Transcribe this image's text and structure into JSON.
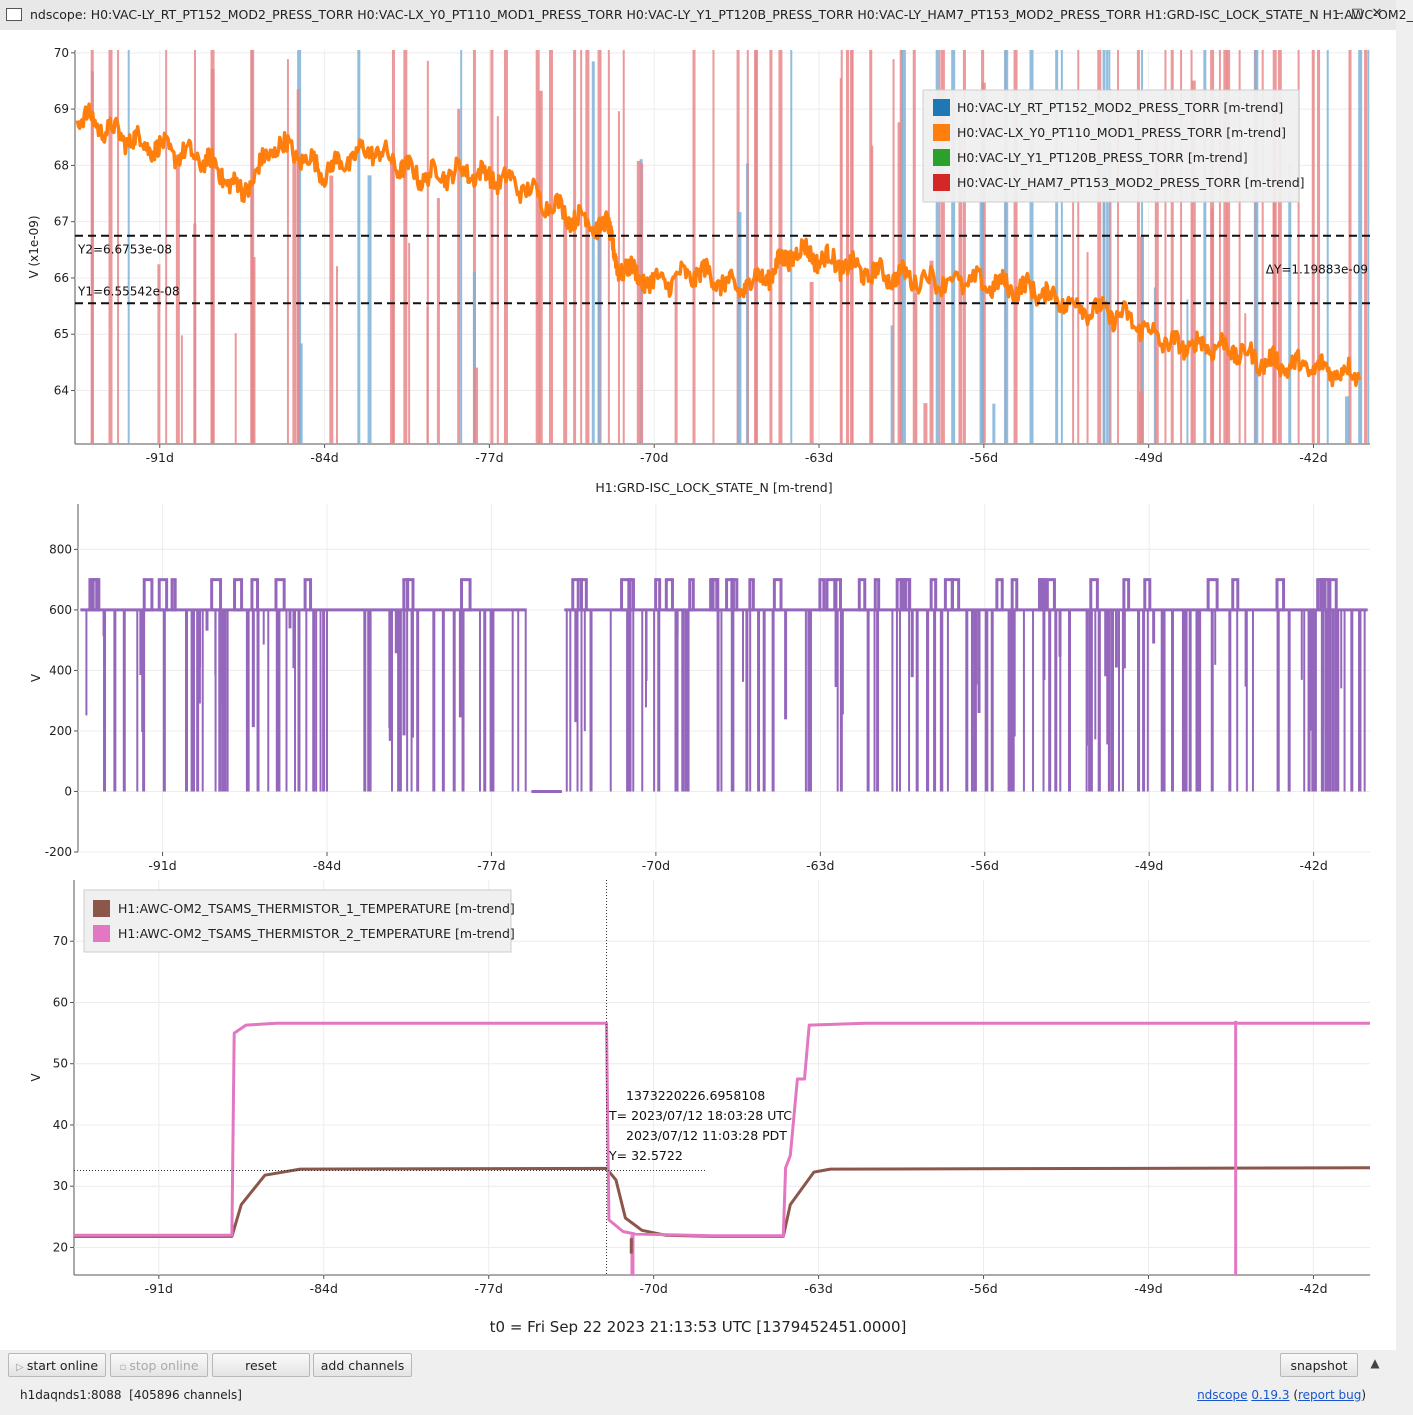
{
  "window": {
    "title": "ndscope: H0:VAC-LY_RT_PT152_MOD2_PRESS_TORR H0:VAC-LX_Y0_PT110_MOD1_PRESS_TORR H0:VAC-LY_Y1_PT120B_PRESS_TORR H0:VAC-LY_HAM7_PT153_MOD2_PRESS_TORR H1:GRD-ISC_LOCK_STATE_N H1:AWC-OM2_",
    "icons": [
      "window-icon",
      "minimize-icon",
      "maximize-icon",
      "close-icon"
    ]
  },
  "x_ticks": [
    "-91d",
    "-84d",
    "-77d",
    "-70d",
    "-63d",
    "-56d",
    "-49d",
    "-42d"
  ],
  "chart_data": [
    {
      "type": "line",
      "ylabel": "V (x1e-09)",
      "ylim": [
        63.05,
        70.05
      ],
      "y_ticks": [
        "64",
        "65",
        "66",
        "67",
        "68",
        "69",
        "70"
      ],
      "x_range_days": [
        -94.6,
        -39.6
      ],
      "legend_position": "top-right",
      "series": [
        {
          "name": "H0:VAC-LY_RT_PT152_MOD2_PRESS_TORR [m-trend]",
          "color": "#1f77b4"
        },
        {
          "name": "H0:VAC-LX_Y0_PT110_MOD1_PRESS_TORR [m-trend]",
          "color": "#ff7f0e",
          "x": [
            -94.5,
            -92.5,
            -91,
            -89,
            -87.5,
            -86,
            -84,
            -82,
            -80,
            -78,
            -76,
            -73.5,
            -72,
            -71.5,
            -70,
            -68,
            -66.5,
            -65,
            -64,
            -62.5,
            -61,
            -59,
            -56,
            -54,
            -52,
            -50,
            -48,
            -46,
            -44,
            -42,
            -40
          ],
          "y": [
            68.9,
            68.5,
            68.3,
            68.1,
            67.5,
            68.4,
            67.9,
            68.3,
            67.8,
            67.9,
            67.7,
            67.1,
            66.9,
            66.2,
            65.9,
            66.1,
            65.8,
            66.1,
            66.5,
            66.3,
            66.1,
            66.0,
            65.9,
            65.8,
            65.5,
            65.3,
            64.8,
            64.8,
            64.5,
            64.4,
            64.3
          ]
        },
        {
          "name": "H0:VAC-LY_Y1_PT120B_PRESS_TORR [m-trend]",
          "color": "#2ca02c"
        },
        {
          "name": "H0:VAC-LY_HAM7_PT153_MOD2_PRESS_TORR [m-trend]",
          "color": "#d62728"
        }
      ],
      "cursors": {
        "y2_label": "Y2=6.6753e-08",
        "y1_label": "Y1=6.55542e-08",
        "dy_label": "ΔY=1.19883e-09",
        "y2": 66.75,
        "y1": 65.55
      }
    },
    {
      "type": "line",
      "title": "H1:GRD-ISC_LOCK_STATE_N [m-trend]",
      "ylabel": "V",
      "ylim": [
        -200,
        950
      ],
      "y_ticks": [
        "-200",
        "0",
        "200",
        "400",
        "600",
        "800"
      ],
      "x_range_days": [
        -94.6,
        -39.6
      ],
      "series": [
        {
          "name": "H1:GRD-ISC_LOCK_STATE_N [m-trend]",
          "color": "#9467bd",
          "levels": [
            0,
            600,
            700
          ]
        }
      ]
    },
    {
      "type": "line",
      "ylabel": "V",
      "ylim": [
        15.5,
        80
      ],
      "y_ticks": [
        "20",
        "30",
        "40",
        "50",
        "60",
        "70"
      ],
      "x_range_days": [
        -94.6,
        -39.6
      ],
      "legend_position": "top-left",
      "series": [
        {
          "name": "H1:AWC-OM2_TSAMS_THERMISTOR_1_TEMPERATURE [m-trend]",
          "color": "#8c564b",
          "x": [
            -94.6,
            -87.9,
            -87.5,
            -86.5,
            -85,
            -72,
            -71.6,
            -71.2,
            -70.5,
            -69.5,
            -67.5,
            -64.5,
            -64.2,
            -63.2,
            -62.5,
            -39.6
          ],
          "y": [
            21.8,
            21.8,
            27,
            31.8,
            32.8,
            32.9,
            31,
            24.8,
            22.8,
            22.0,
            21.8,
            21.8,
            27,
            32.3,
            32.8,
            33.0
          ]
        },
        {
          "name": "H1:AWC-OM2_TSAMS_THERMISTOR_2_TEMPERATURE [m-trend]",
          "color": "#e377c2",
          "x": [
            -94.6,
            -87.9,
            -87.8,
            -87.3,
            -86,
            -72,
            -71.9,
            -71.3,
            -70.8,
            -67.5,
            -64.5,
            -64.4,
            -64.2,
            -63.9,
            -63.6,
            -63.4,
            -61,
            -39.6
          ],
          "y": [
            22.0,
            22.0,
            55.0,
            56.3,
            56.6,
            56.6,
            24.5,
            22.6,
            22.2,
            21.9,
            21.9,
            33.0,
            35.0,
            47.5,
            47.5,
            56.3,
            56.6,
            56.6
          ]
        }
      ],
      "crosshair": {
        "x_days": -72,
        "y": 32.5722,
        "gps": "1373220226.6958108",
        "utc": "T= 2023/07/12 18:03:28 UTC",
        "pdt": "2023/07/12 11:03:28 PDT",
        "ylabel": "Y= 32.5722"
      }
    }
  ],
  "t0_label": "t0 = Fri Sep 22 2023 21:13:53 UTC [1379452451.0000]",
  "buttons": {
    "start_online": "start online",
    "stop_online": "stop online",
    "reset": "reset",
    "add_channels": "add channels",
    "snapshot": "snapshot"
  },
  "status": {
    "server": "h1daqnds1:8088  [405896 channels]",
    "app": "ndscope",
    "version": "0.19.3",
    "report": "report bug"
  }
}
